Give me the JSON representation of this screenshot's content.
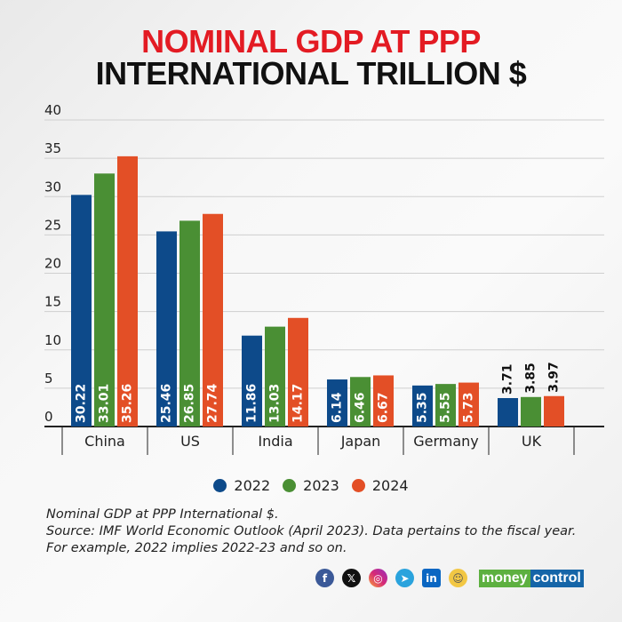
{
  "title_line1": "NOMINAL GDP AT PPP",
  "title_line2": "INTERNATIONAL TRILLION $",
  "colors": {
    "2022": "#0d4a8a",
    "2023": "#4a8f34",
    "2024": "#e34f26"
  },
  "chart_data": {
    "type": "bar",
    "categories": [
      "China",
      "US",
      "India",
      "Japan",
      "Germany",
      "UK"
    ],
    "series": [
      {
        "name": "2022",
        "values": [
          30.22,
          25.46,
          11.86,
          6.14,
          5.35,
          3.71
        ]
      },
      {
        "name": "2023",
        "values": [
          33.01,
          26.85,
          13.03,
          6.46,
          5.55,
          3.85
        ]
      },
      {
        "name": "2024",
        "values": [
          35.26,
          27.74,
          14.17,
          6.67,
          5.73,
          3.97
        ]
      }
    ],
    "data_labels": [
      [
        "30.22",
        "25.46",
        "11.86",
        "6.14",
        "5.35",
        "3.71"
      ],
      [
        "33.01",
        "26.85",
        "13.03",
        "6.46",
        "5.55",
        "3.85"
      ],
      [
        "35.26",
        "27.74",
        "14.17",
        "6.67",
        "5.73",
        "3.97"
      ]
    ],
    "ylim": [
      0,
      40
    ],
    "yticks": [
      "0",
      "5",
      "10",
      "15",
      "20",
      "25",
      "30",
      "35",
      "40"
    ],
    "grid": true,
    "legend": "bottom"
  },
  "footer": {
    "line1": "Nominal GDP at PPP International $.",
    "line2": "Source: IMF World Economic Outlook (April 2023). Data pertains to the fiscal year.",
    "line3": "For example, 2022 implies 2022-23 and so on."
  },
  "social": {
    "facebook": "f",
    "x": "𝕏",
    "instagram": "◎",
    "telegram": "➤",
    "linkedin": "in",
    "koo": "☺"
  },
  "brand": {
    "part1": "money",
    "part2": "control"
  }
}
